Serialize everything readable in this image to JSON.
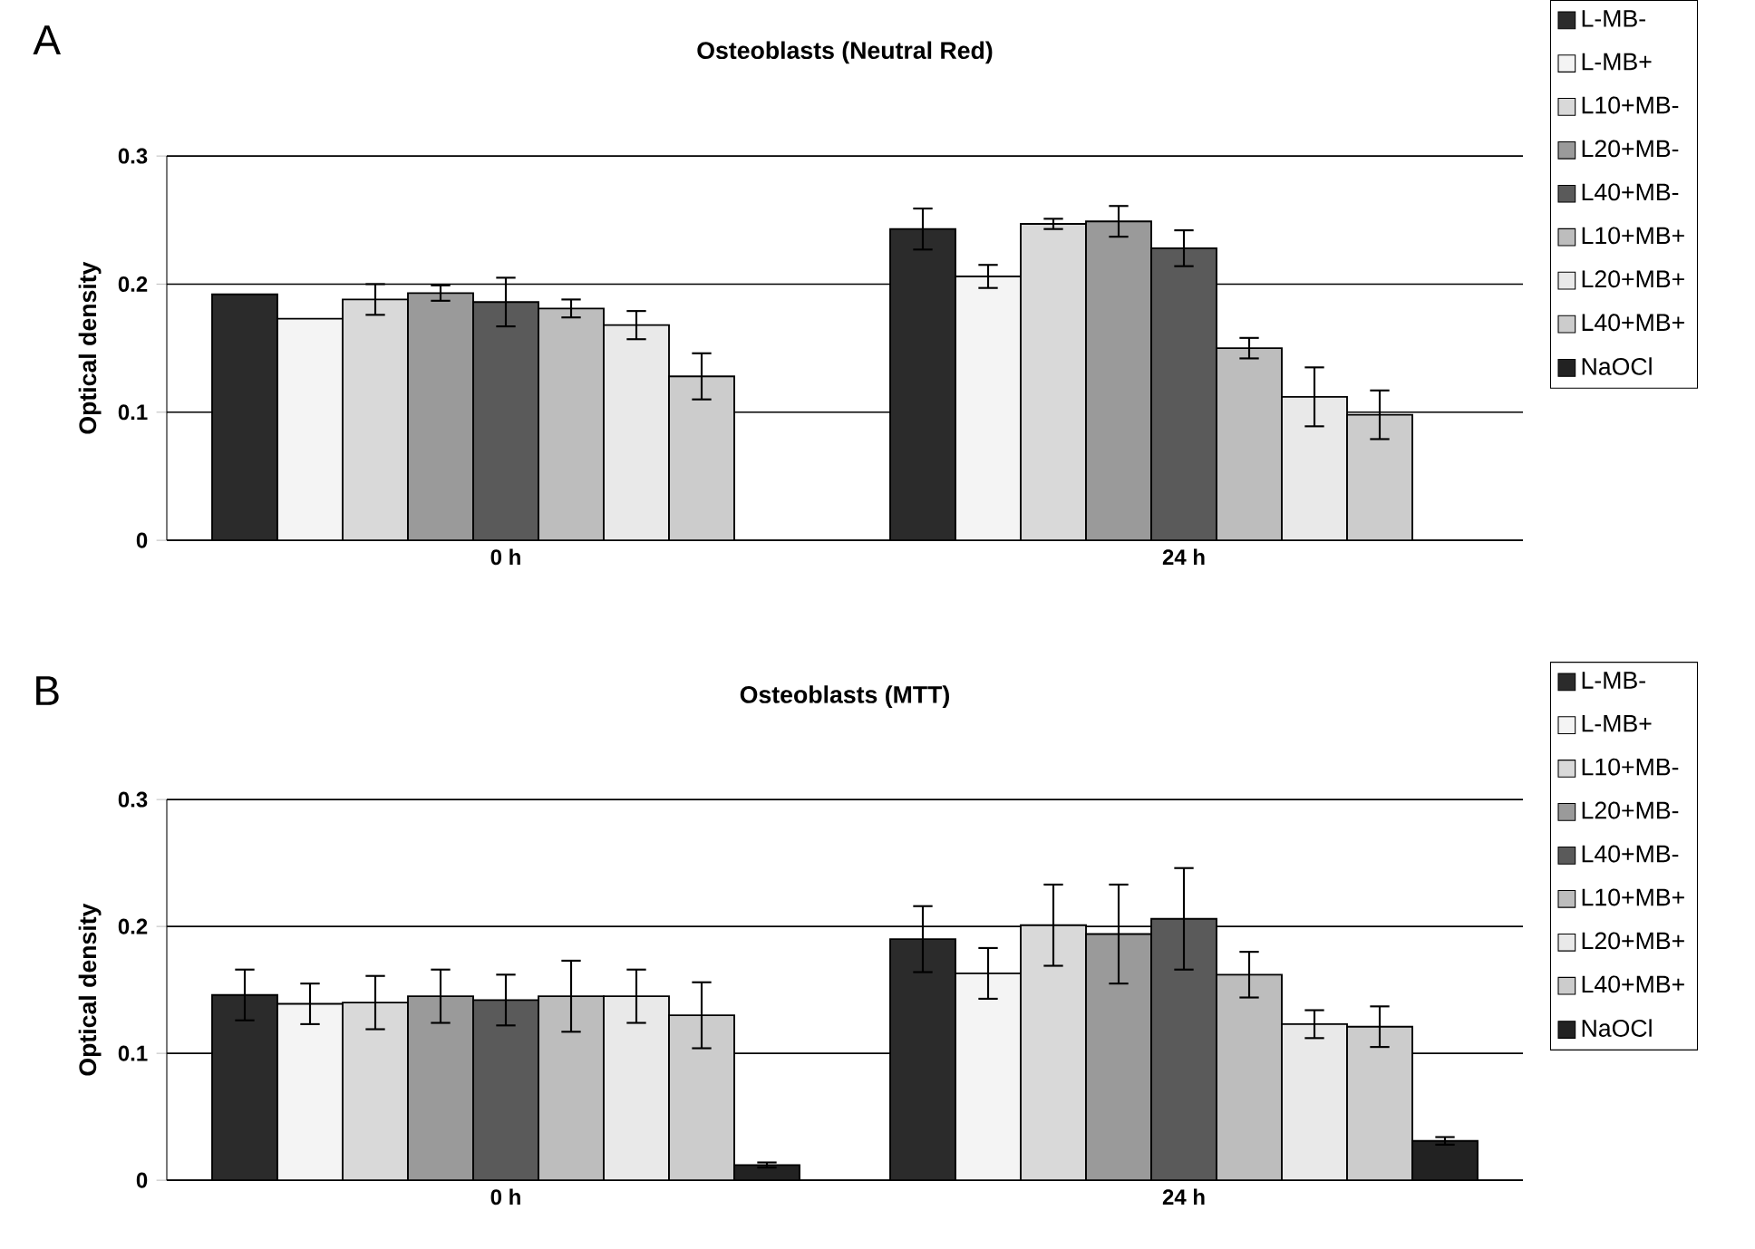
{
  "chart_data": [
    {
      "type": "bar",
      "title": "Osteoblasts (Neutral Red)",
      "ylabel": "Optical density",
      "annotations": [
        "A"
      ],
      "categories": [
        "0 h",
        "24 h"
      ],
      "ylim": [
        0,
        0.3
      ],
      "yticks": [
        0,
        0.1,
        0.2,
        0.3
      ],
      "grid": "y",
      "legend": "right",
      "series": [
        {
          "name": "L-MB-",
          "color": "#2b2b2b",
          "values": [
            0.192,
            0.243
          ],
          "errors": [
            null,
            0.016
          ]
        },
        {
          "name": "L-MB+",
          "color": "#f4f4f4",
          "values": [
            0.173,
            0.206
          ],
          "errors": [
            null,
            0.009
          ]
        },
        {
          "name": "L10+MB-",
          "color": "#d9d9d9",
          "values": [
            0.188,
            0.247
          ],
          "errors": [
            0.012,
            0.004
          ]
        },
        {
          "name": "L20+MB-",
          "color": "#9a9a9a",
          "values": [
            0.193,
            0.249
          ],
          "errors": [
            0.006,
            0.012
          ]
        },
        {
          "name": "L40+MB-",
          "color": "#5a5a5a",
          "values": [
            0.186,
            0.228
          ],
          "errors": [
            0.019,
            0.014
          ]
        },
        {
          "name": "L10+MB+",
          "color": "#bdbdbd",
          "values": [
            0.181,
            0.15
          ],
          "errors": [
            0.007,
            0.008
          ]
        },
        {
          "name": "L20+MB+",
          "color": "#e9e9e9",
          "values": [
            0.168,
            0.112
          ],
          "errors": [
            0.011,
            0.023
          ]
        },
        {
          "name": "L40+MB+",
          "color": "#cccccc",
          "values": [
            0.128,
            0.098
          ],
          "errors": [
            0.018,
            0.019
          ]
        },
        {
          "name": "NaOCl",
          "color": "#222222",
          "values": [
            null,
            null
          ],
          "errors": [
            null,
            null
          ]
        }
      ]
    },
    {
      "type": "bar",
      "title": "Osteoblasts (MTT)",
      "ylabel": "Optical density",
      "annotations": [
        "B"
      ],
      "categories": [
        "0 h",
        "24 h"
      ],
      "ylim": [
        0,
        0.3
      ],
      "yticks": [
        0,
        0.1,
        0.2,
        0.3
      ],
      "grid": "y",
      "legend": "right",
      "series": [
        {
          "name": "L-MB-",
          "color": "#2b2b2b",
          "values": [
            0.146,
            0.19
          ],
          "errors": [
            0.02,
            0.026
          ]
        },
        {
          "name": "L-MB+",
          "color": "#f4f4f4",
          "values": [
            0.139,
            0.163
          ],
          "errors": [
            0.016,
            0.02
          ]
        },
        {
          "name": "L10+MB-",
          "color": "#d9d9d9",
          "values": [
            0.14,
            0.201
          ],
          "errors": [
            0.021,
            0.032
          ]
        },
        {
          "name": "L20+MB-",
          "color": "#9a9a9a",
          "values": [
            0.145,
            0.194
          ],
          "errors": [
            0.021,
            0.039
          ]
        },
        {
          "name": "L40+MB-",
          "color": "#5a5a5a",
          "values": [
            0.142,
            0.206
          ],
          "errors": [
            0.02,
            0.04
          ]
        },
        {
          "name": "L10+MB+",
          "color": "#bdbdbd",
          "values": [
            0.145,
            0.162
          ],
          "errors": [
            0.028,
            0.018
          ]
        },
        {
          "name": "L20+MB+",
          "color": "#e9e9e9",
          "values": [
            0.145,
            0.123
          ],
          "errors": [
            0.021,
            0.011
          ]
        },
        {
          "name": "L40+MB+",
          "color": "#cccccc",
          "values": [
            0.13,
            0.121
          ],
          "errors": [
            0.026,
            0.016
          ]
        },
        {
          "name": "NaOCl",
          "color": "#222222",
          "values": [
            0.012,
            0.031
          ],
          "errors": [
            0.002,
            0.003
          ]
        }
      ]
    }
  ]
}
